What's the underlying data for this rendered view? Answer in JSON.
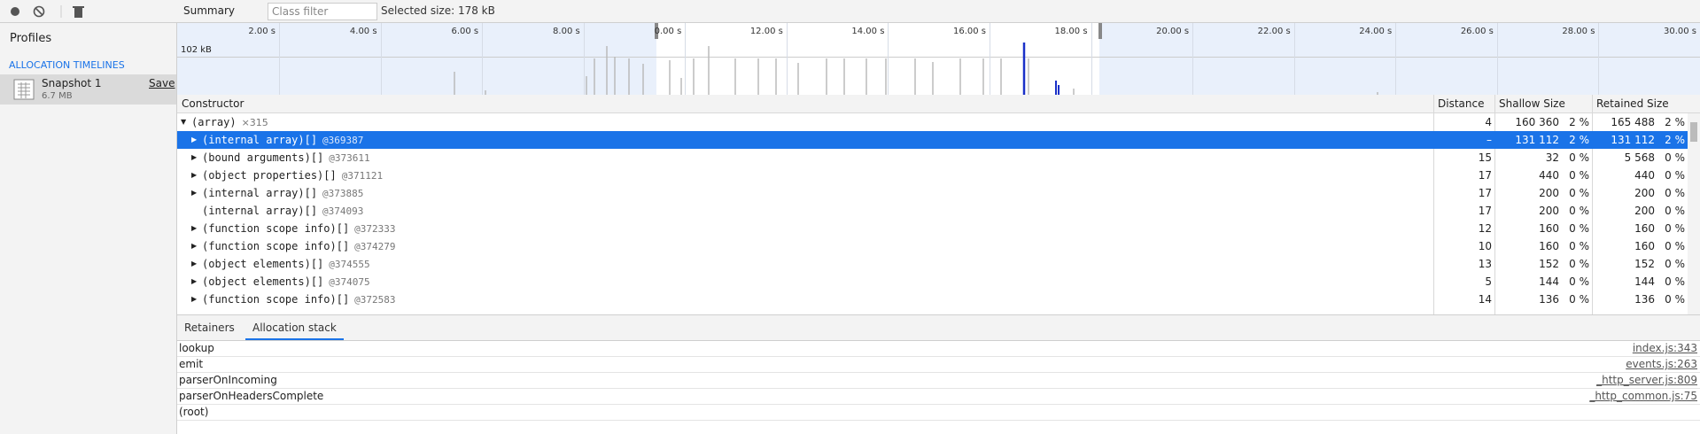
{
  "toolbar": {
    "view": "Summary",
    "class_filter": "Class filter",
    "selected_size": "Selected size: 178 kB"
  },
  "sidebar": {
    "title": "Profiles",
    "section": "ALLOCATION TIMELINES",
    "snapshot": {
      "name": "Snapshot 1",
      "size": "6.7 MB",
      "action": "Save"
    }
  },
  "timeline": {
    "scale_label": "102 kB",
    "ticks": [
      "2.00 s",
      "4.00 s",
      "6.00 s",
      "8.00 s",
      "0.00 s",
      "12.00 s",
      "14.00 s",
      "16.00 s",
      "18.00 s",
      "20.00 s",
      "22.00 s",
      "24.00 s",
      "26.00 s",
      "28.00 s",
      "30.00 s"
    ]
  },
  "table": {
    "columns": [
      "Constructor",
      "Distance",
      "Shallow Size",
      "Retained Size"
    ],
    "rows": [
      {
        "name": "(array)",
        "id": "×315",
        "distance": "4",
        "shallow": "160 360",
        "shallow_pct": "2 %",
        "retained": "165 488",
        "retained_pct": "2 %",
        "expandable": true,
        "expanded": true
      },
      {
        "name": "(internal array)[]",
        "id": "@369387",
        "distance": "–",
        "shallow": "131 112",
        "shallow_pct": "2 %",
        "retained": "131 112",
        "retained_pct": "2 %",
        "expandable": true,
        "selected": true
      },
      {
        "name": "(bound arguments)[]",
        "id": "@373611",
        "distance": "15",
        "shallow": "32",
        "shallow_pct": "0 %",
        "retained": "5 568",
        "retained_pct": "0 %",
        "expandable": true
      },
      {
        "name": "(object properties)[]",
        "id": "@371121",
        "distance": "17",
        "shallow": "440",
        "shallow_pct": "0 %",
        "retained": "440",
        "retained_pct": "0 %",
        "expandable": true
      },
      {
        "name": "(internal array)[]",
        "id": "@373885",
        "distance": "17",
        "shallow": "200",
        "shallow_pct": "0 %",
        "retained": "200",
        "retained_pct": "0 %",
        "expandable": true
      },
      {
        "name": "(internal array)[]",
        "id": "@374093",
        "distance": "17",
        "shallow": "200",
        "shallow_pct": "0 %",
        "retained": "200",
        "retained_pct": "0 %",
        "expandable": false
      },
      {
        "name": "(function scope info)[]",
        "id": "@372333",
        "distance": "12",
        "shallow": "160",
        "shallow_pct": "0 %",
        "retained": "160",
        "retained_pct": "0 %",
        "expandable": true
      },
      {
        "name": "(function scope info)[]",
        "id": "@374279",
        "distance": "10",
        "shallow": "160",
        "shallow_pct": "0 %",
        "retained": "160",
        "retained_pct": "0 %",
        "expandable": true
      },
      {
        "name": "(object elements)[]",
        "id": "@374555",
        "distance": "13",
        "shallow": "152",
        "shallow_pct": "0 %",
        "retained": "152",
        "retained_pct": "0 %",
        "expandable": true
      },
      {
        "name": "(object elements)[]",
        "id": "@374075",
        "distance": "5",
        "shallow": "144",
        "shallow_pct": "0 %",
        "retained": "144",
        "retained_pct": "0 %",
        "expandable": true
      },
      {
        "name": "(function scope info)[]",
        "id": "@372583",
        "distance": "14",
        "shallow": "136",
        "shallow_pct": "0 %",
        "retained": "136",
        "retained_pct": "0 %",
        "expandable": true
      }
    ]
  },
  "tabs": [
    "Retainers",
    "Allocation stack"
  ],
  "stack": [
    {
      "function": "lookup",
      "location": "index.js:343"
    },
    {
      "function": "emit",
      "location": "events.js:263"
    },
    {
      "function": "parserOnIncoming",
      "location": "_http_server.js:809"
    },
    {
      "function": "parserOnHeadersComplete",
      "location": "_http_common.js:75"
    },
    {
      "function": "(root)"
    }
  ]
}
